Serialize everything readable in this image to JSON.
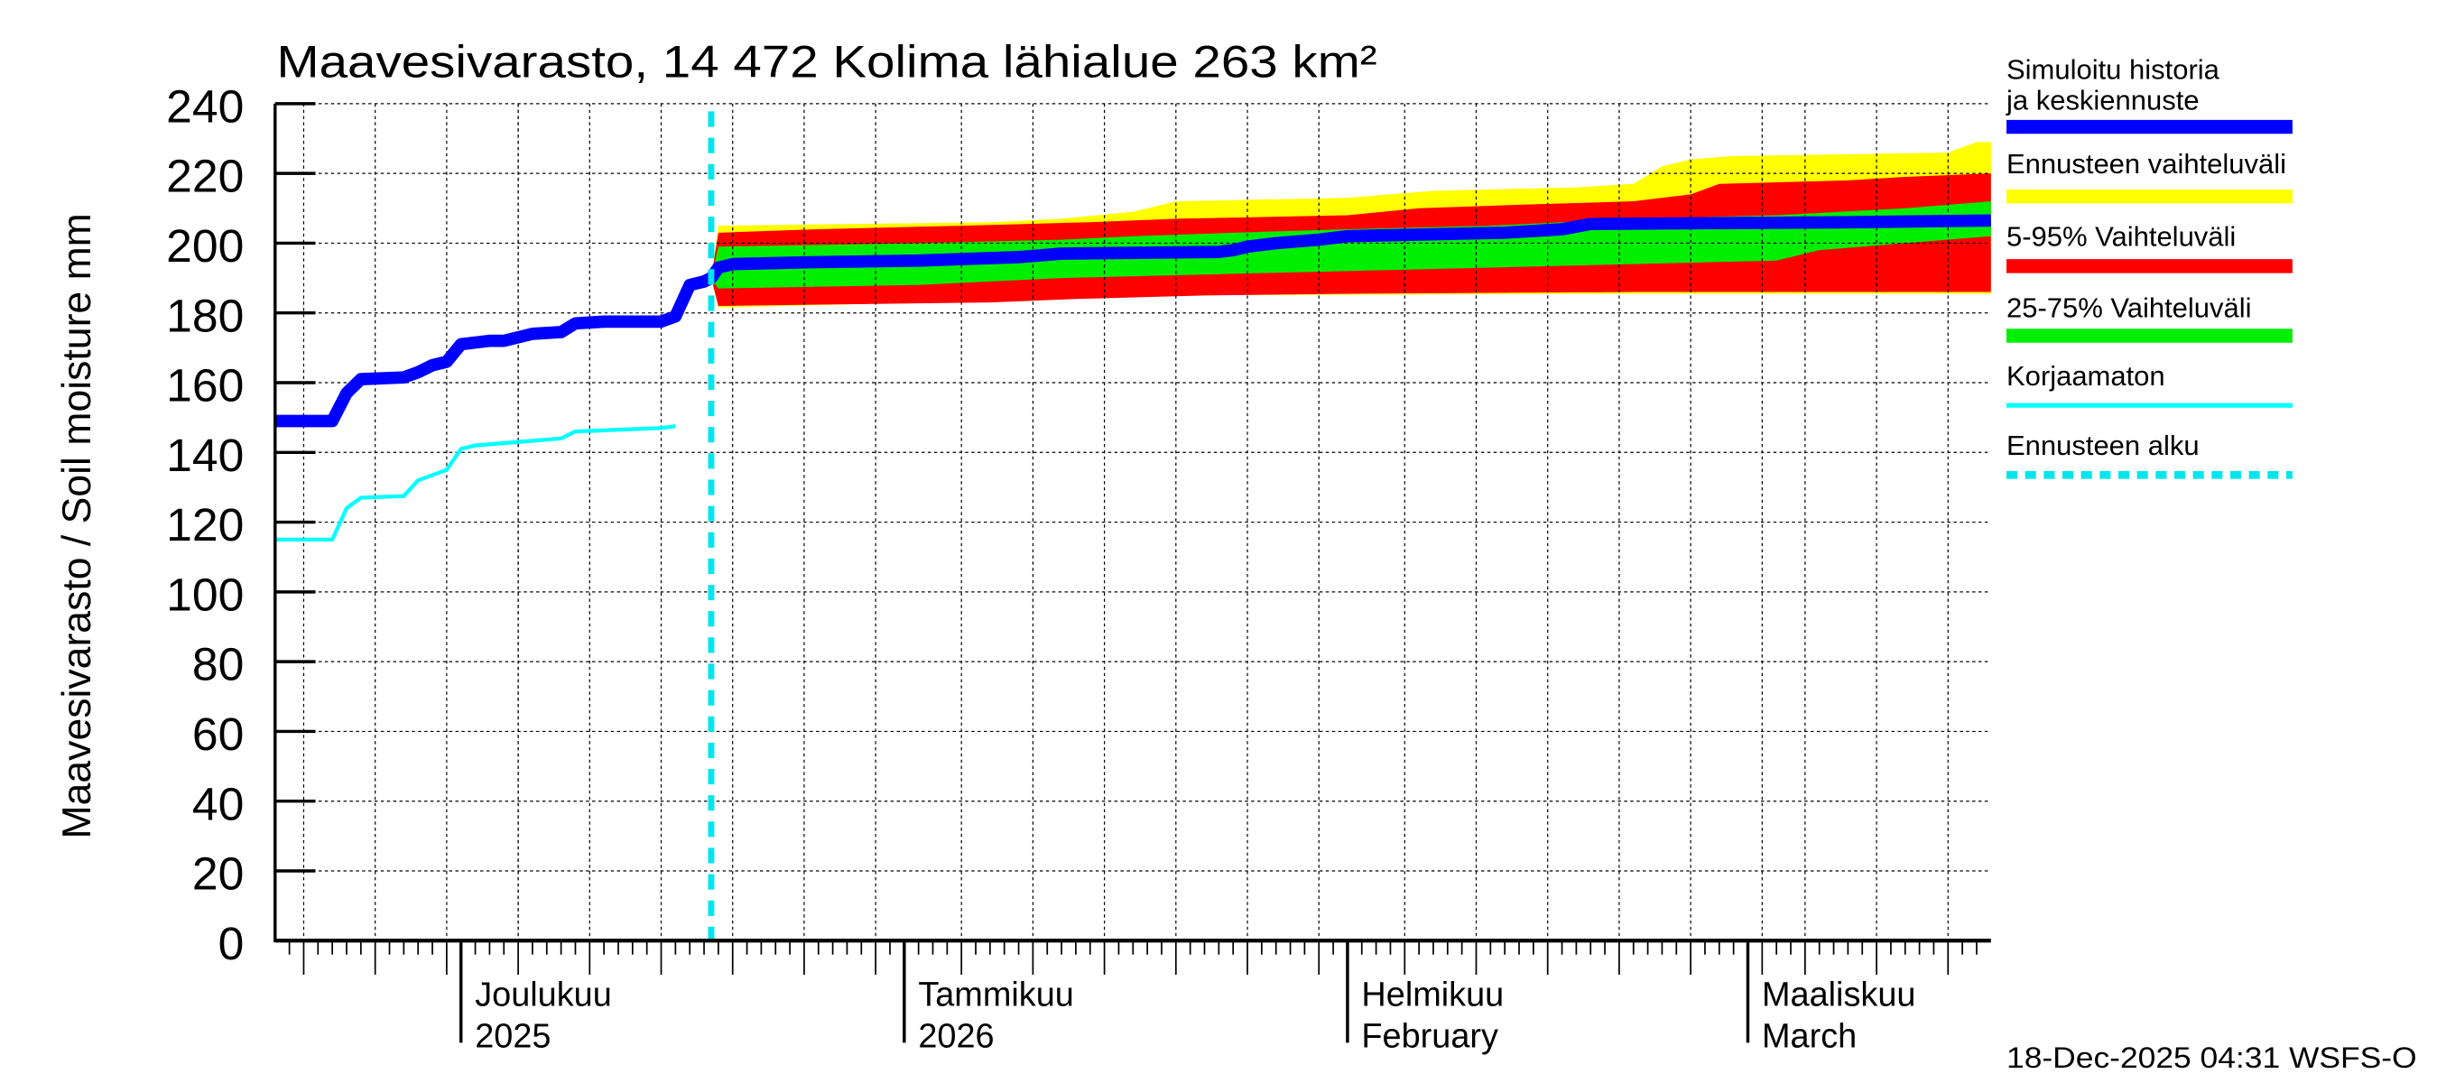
{
  "chart_data": {
    "type": "area",
    "title": "Maavesivarasto, 14 472 Kolima lähialue 263 km²",
    "ylabel": "Maavesivarasto / Soil moisture   mm",
    "ylim": [
      0,
      240
    ],
    "yticks": [
      0,
      20,
      40,
      60,
      80,
      100,
      120,
      140,
      160,
      180,
      200,
      220,
      240
    ],
    "x_unit": "days since 2025-11-18",
    "xlim": [
      0,
      120
    ],
    "forecast_start_day": 30.5,
    "month_starts": [
      13,
      44,
      75,
      103
    ],
    "month_labels": [
      {
        "day": 13,
        "line1": "Joulukuu",
        "line2": "2025"
      },
      {
        "day": 44,
        "line1": "Tammikuu",
        "line2": "2026"
      },
      {
        "day": 75,
        "line1": "Helmikuu",
        "line2": "February"
      },
      {
        "day": 103,
        "line1": "Maaliskuu",
        "line2": "March"
      }
    ],
    "grid": true,
    "legend_position": "right",
    "legend": [
      {
        "label": "Simuloitu historia ja keskiennuste",
        "color": "#0000ff",
        "style": "thick"
      },
      {
        "label": "Ennusteen vaihteluväli",
        "color": "#ffff00",
        "style": "band"
      },
      {
        "label": "5-95% Vaihteluväli",
        "color": "#ff0000",
        "style": "band"
      },
      {
        "label": "25-75% Vaihteluväli",
        "color": "#00ee00",
        "style": "band"
      },
      {
        "label": "Korjaamaton",
        "color": "#00ffff",
        "style": "thin"
      },
      {
        "label": "Ennusteen alku",
        "color": "#00e5ee",
        "style": "dashed"
      }
    ],
    "series": {
      "simulated": [
        [
          0,
          149
        ],
        [
          4,
          149
        ],
        [
          5,
          157
        ],
        [
          6,
          161
        ],
        [
          9,
          161.5
        ],
        [
          10,
          163
        ],
        [
          11,
          165
        ],
        [
          12,
          166
        ],
        [
          13,
          171
        ],
        [
          15,
          172
        ],
        [
          16,
          172
        ],
        [
          17,
          173
        ],
        [
          18,
          174
        ],
        [
          20,
          174.5
        ],
        [
          21,
          177
        ],
        [
          23,
          177.5
        ],
        [
          27,
          177.5
        ],
        [
          28,
          179
        ],
        [
          29,
          188
        ],
        [
          30,
          189
        ],
        [
          30.5,
          190
        ],
        [
          31,
          193
        ],
        [
          32,
          194
        ],
        [
          37,
          194.5
        ],
        [
          45,
          195
        ],
        [
          52,
          196
        ],
        [
          55,
          197
        ],
        [
          66,
          197.5
        ],
        [
          67,
          198
        ],
        [
          68,
          199
        ],
        [
          70,
          200
        ],
        [
          73,
          201
        ],
        [
          75,
          202
        ],
        [
          86,
          203
        ],
        [
          90,
          204
        ],
        [
          92,
          205.5
        ],
        [
          110,
          206
        ],
        [
          120,
          206.5
        ]
      ],
      "uncorrected": [
        [
          0,
          115
        ],
        [
          4,
          115
        ],
        [
          5,
          124
        ],
        [
          6,
          127
        ],
        [
          9,
          127.5
        ],
        [
          10,
          132
        ],
        [
          12,
          135
        ],
        [
          13,
          141
        ],
        [
          14,
          142
        ],
        [
          17,
          143
        ],
        [
          20,
          144
        ],
        [
          21,
          146
        ],
        [
          27,
          147
        ],
        [
          28,
          147.5
        ]
      ],
      "range_upper": [
        [
          30.5,
          190
        ],
        [
          31,
          205
        ],
        [
          50,
          206
        ],
        [
          55,
          207
        ],
        [
          60,
          209
        ],
        [
          63,
          212
        ],
        [
          75,
          213
        ],
        [
          81,
          215
        ],
        [
          91,
          216
        ],
        [
          95,
          217
        ],
        [
          97,
          222
        ],
        [
          99,
          224
        ],
        [
          102,
          225
        ],
        [
          110,
          225.5
        ],
        [
          117,
          226
        ],
        [
          119,
          229
        ],
        [
          120,
          229
        ]
      ],
      "range_lower": [
        [
          30.5,
          190
        ],
        [
          31,
          181.5
        ],
        [
          50,
          183.5
        ],
        [
          55,
          184.5
        ],
        [
          60,
          185
        ],
        [
          95,
          185.5
        ],
        [
          120,
          185.5
        ]
      ],
      "p95": [
        [
          30.5,
          190
        ],
        [
          31,
          203
        ],
        [
          38,
          204
        ],
        [
          48,
          205
        ],
        [
          57,
          206
        ],
        [
          63,
          207
        ],
        [
          75,
          208
        ],
        [
          80,
          210
        ],
        [
          87,
          211
        ],
        [
          95,
          212
        ],
        [
          99,
          214
        ],
        [
          101,
          217
        ],
        [
          110,
          218
        ],
        [
          114,
          219
        ],
        [
          120,
          220
        ]
      ],
      "p5": [
        [
          30.5,
          190
        ],
        [
          31,
          182
        ],
        [
          50,
          183
        ],
        [
          56,
          184
        ],
        [
          65,
          185
        ],
        [
          75,
          185.5
        ],
        [
          95,
          186
        ],
        [
          120,
          186
        ]
      ],
      "p75": [
        [
          30.5,
          190
        ],
        [
          31,
          199
        ],
        [
          45,
          200
        ],
        [
          55,
          201
        ],
        [
          60,
          202
        ],
        [
          67,
          203
        ],
        [
          75,
          204
        ],
        [
          85,
          205
        ],
        [
          95,
          207
        ],
        [
          105,
          208
        ],
        [
          114,
          210
        ],
        [
          120,
          212
        ]
      ],
      "p25": [
        [
          30.5,
          190
        ],
        [
          31,
          187
        ],
        [
          45,
          188
        ],
        [
          50,
          189
        ],
        [
          55,
          190
        ],
        [
          65,
          191
        ],
        [
          75,
          192
        ],
        [
          85,
          193
        ],
        [
          95,
          194
        ],
        [
          105,
          195
        ],
        [
          108,
          198
        ],
        [
          114,
          200
        ],
        [
          120,
          202
        ]
      ]
    }
  },
  "footer": {
    "timestamp": "18-Dec-2025 04:31 WSFS-O"
  }
}
